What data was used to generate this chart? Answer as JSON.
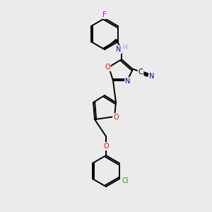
{
  "background_color": "#ebebeb",
  "figsize": [
    3.0,
    3.0
  ],
  "dpi": 100,
  "bond_color": "#000000",
  "bond_lw": 1.4,
  "atom_colors": {
    "O": "#ff0000",
    "N": "#0000cc",
    "F": "#cc00cc",
    "Cl": "#00aa00",
    "C": "#000000",
    "H": "#7aacb0"
  }
}
